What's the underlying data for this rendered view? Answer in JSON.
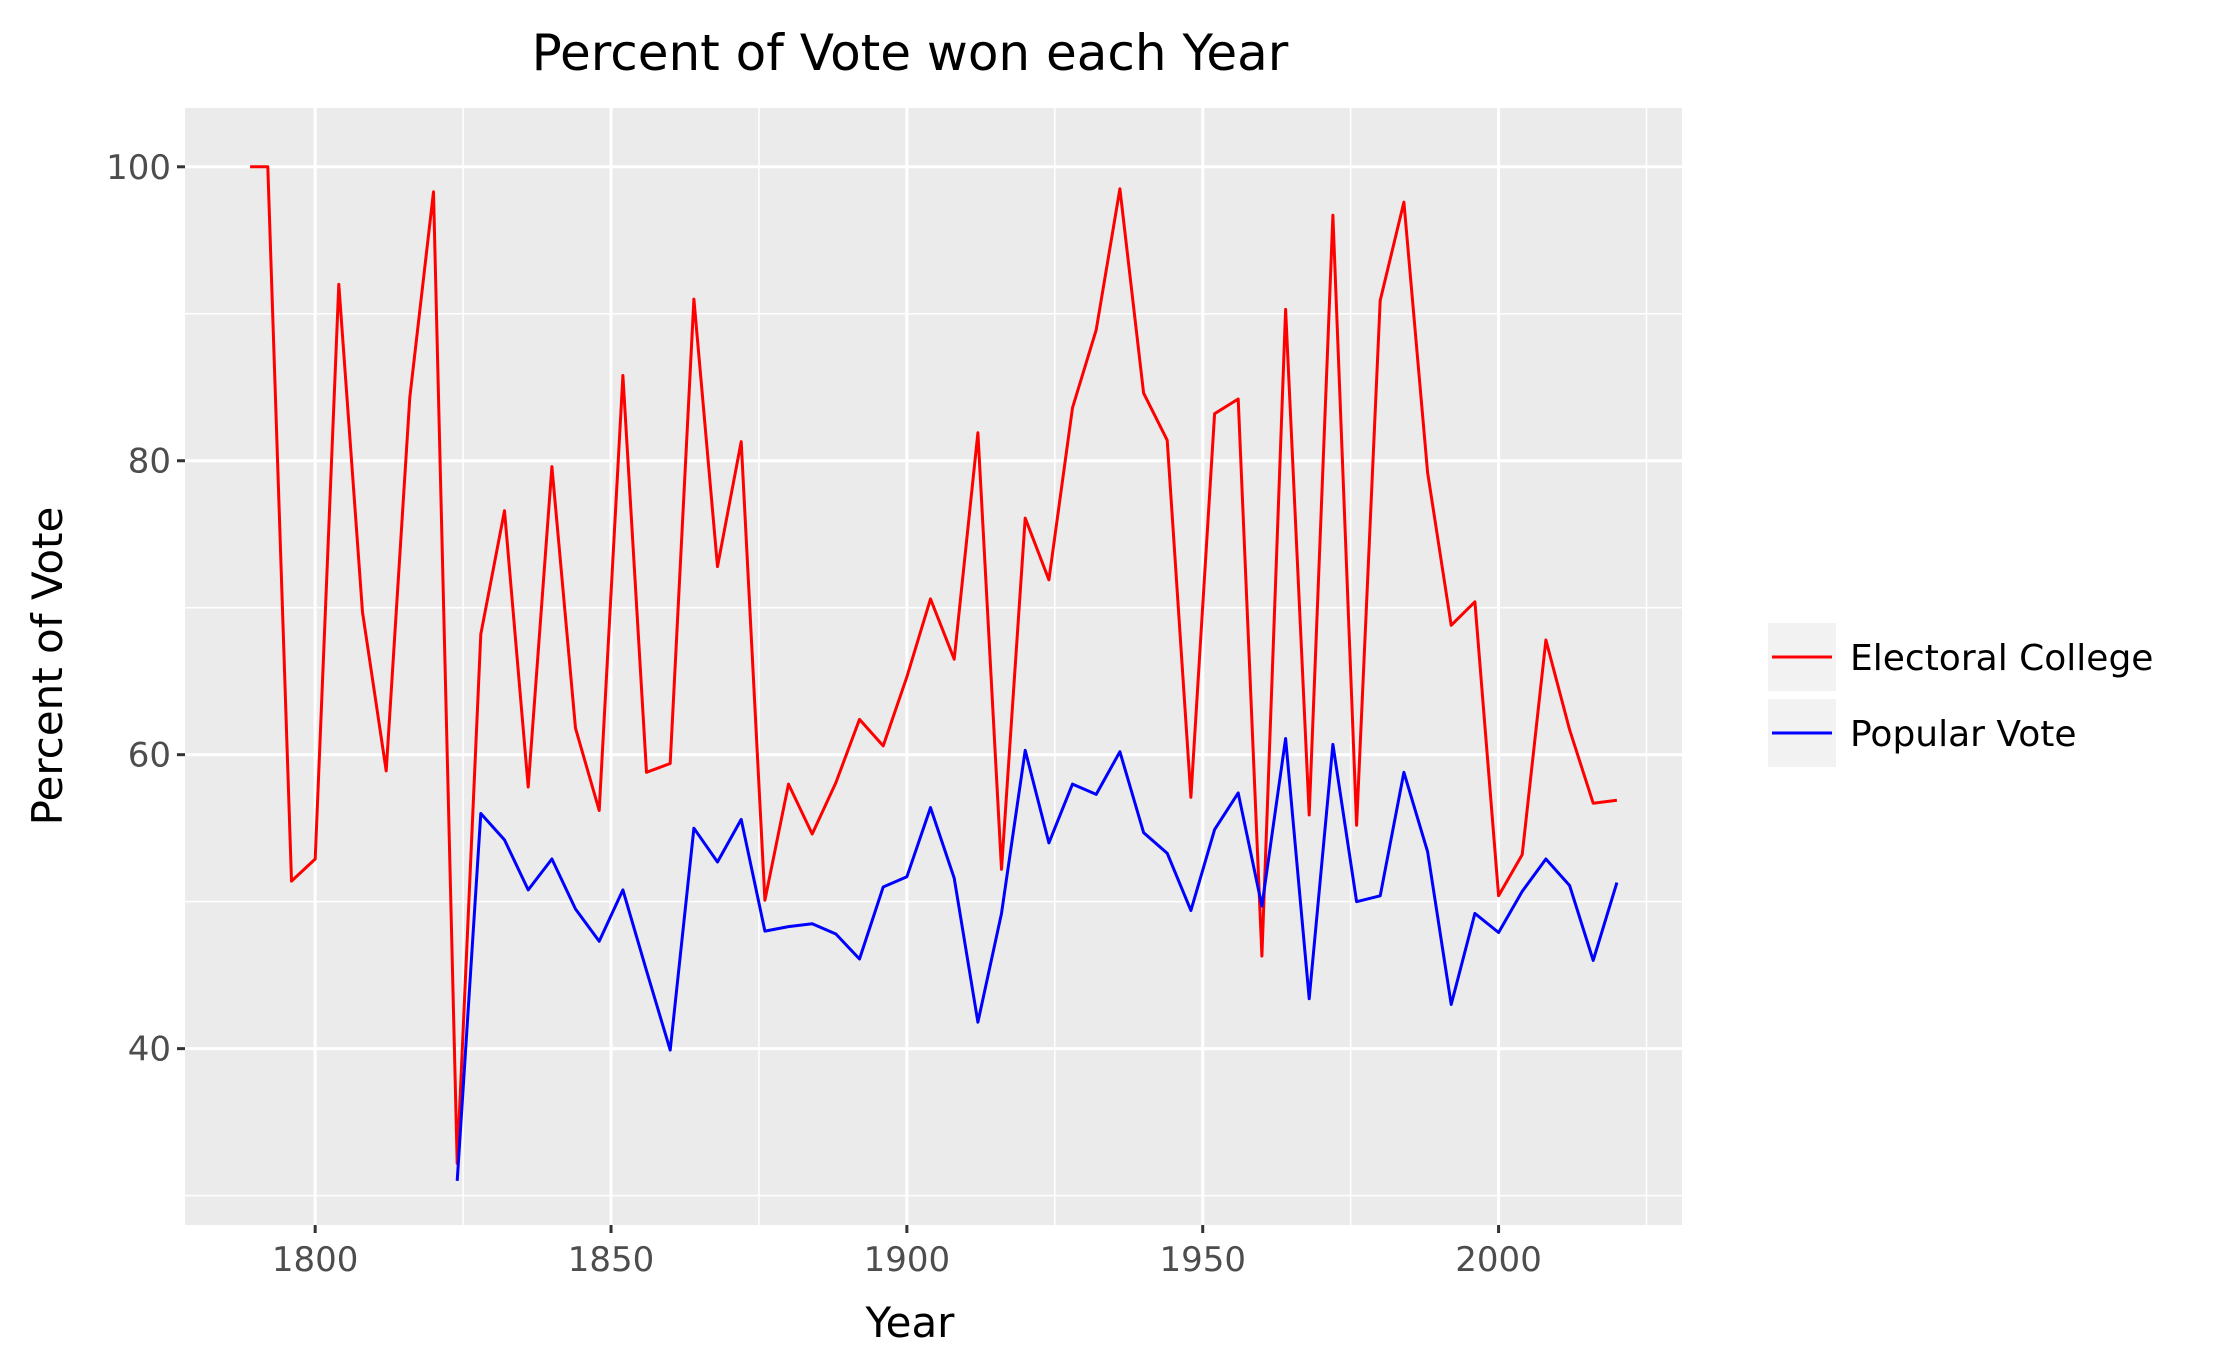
{
  "chart_data": {
    "type": "line",
    "title": "Percent of Vote won each Year",
    "xlabel": "Year",
    "ylabel": "Percent of Vote",
    "xlim": [
      1778,
      2031
    ],
    "ylim": [
      28,
      104
    ],
    "x_ticks": [
      1800,
      1850,
      1900,
      1950,
      2000
    ],
    "y_ticks": [
      40,
      60,
      80,
      100
    ],
    "grid": true,
    "legend_position": "right",
    "colors": {
      "panel_background": "#ebebeb",
      "grid": "#ffffff",
      "electoral": "#ff0000",
      "popular": "#0000ff"
    },
    "series": [
      {
        "name": "Electoral College",
        "color": "#ff0000",
        "x": [
          1789,
          1792,
          1796,
          1800,
          1804,
          1808,
          1812,
          1816,
          1820,
          1824,
          1828,
          1832,
          1836,
          1840,
          1844,
          1848,
          1852,
          1856,
          1860,
          1864,
          1868,
          1872,
          1876,
          1880,
          1884,
          1888,
          1892,
          1896,
          1900,
          1904,
          1908,
          1912,
          1916,
          1920,
          1924,
          1928,
          1932,
          1936,
          1940,
          1944,
          1948,
          1952,
          1956,
          1960,
          1964,
          1968,
          1972,
          1976,
          1980,
          1984,
          1988,
          1992,
          1996,
          2000,
          2004,
          2008,
          2012,
          2016,
          2020
        ],
        "values": [
          100,
          100,
          51.4,
          52.9,
          92.0,
          69.7,
          58.9,
          84.3,
          98.3,
          32.2,
          68.2,
          76.6,
          57.8,
          79.6,
          61.8,
          56.2,
          85.8,
          58.8,
          59.4,
          91.0,
          72.8,
          81.3,
          50.1,
          58.0,
          54.6,
          58.1,
          62.4,
          60.6,
          65.3,
          70.6,
          66.5,
          81.9,
          52.2,
          76.1,
          71.9,
          83.6,
          88.9,
          98.5,
          84.6,
          81.4,
          57.1,
          83.2,
          84.2,
          46.3,
          90.3,
          55.9,
          96.7,
          55.2,
          90.9,
          97.6,
          79.2,
          68.8,
          70.4,
          50.4,
          53.2,
          67.8,
          61.7,
          56.7,
          56.9
        ]
      },
      {
        "name": "Popular Vote",
        "color": "#0000ff",
        "x": [
          1824,
          1828,
          1832,
          1836,
          1840,
          1844,
          1848,
          1852,
          1856,
          1860,
          1864,
          1868,
          1872,
          1876,
          1880,
          1884,
          1888,
          1892,
          1896,
          1900,
          1904,
          1908,
          1912,
          1916,
          1920,
          1924,
          1928,
          1932,
          1936,
          1940,
          1944,
          1948,
          1952,
          1956,
          1960,
          1964,
          1968,
          1972,
          1976,
          1980,
          1984,
          1988,
          1992,
          1996,
          2000,
          2004,
          2008,
          2012,
          2016,
          2020
        ],
        "values": [
          31.0,
          56.0,
          54.2,
          50.8,
          52.9,
          49.5,
          47.3,
          50.8,
          45.3,
          39.9,
          55.0,
          52.7,
          55.6,
          48.0,
          48.3,
          48.5,
          47.8,
          46.1,
          51.0,
          51.7,
          56.4,
          51.6,
          41.8,
          49.2,
          60.3,
          54.0,
          58.0,
          57.3,
          60.2,
          54.7,
          53.3,
          49.4,
          54.9,
          57.4,
          49.7,
          61.1,
          43.4,
          60.7,
          50.0,
          50.4,
          58.8,
          53.4,
          43.0,
          49.2,
          47.9,
          50.7,
          52.9,
          51.1,
          46.0,
          51.3
        ]
      }
    ]
  }
}
